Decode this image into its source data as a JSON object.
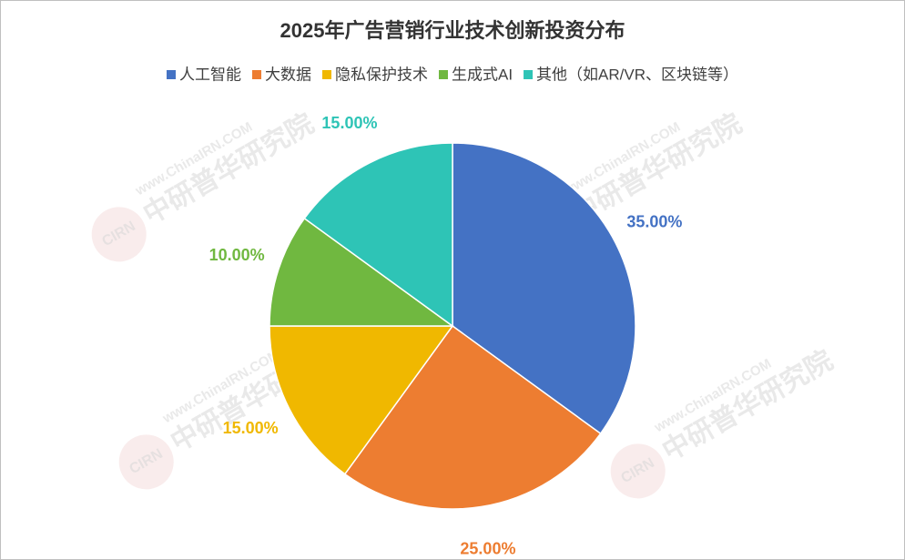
{
  "chart_data": {
    "type": "pie",
    "title": "2025年广告营销行业技术创新投资分布",
    "categories": [
      "人工智能",
      "大数据",
      "隐私保护技术",
      "生成式AI",
      "其他（如AR/VR、区块链等）"
    ],
    "values": [
      35,
      25,
      15,
      10,
      15
    ],
    "value_labels": [
      "35.00%",
      "25.00%",
      "15.00%",
      "10.00%",
      "15.00%"
    ],
    "colors": [
      "#4472c4",
      "#ed7d31",
      "#f0b800",
      "#70b840",
      "#2ec4b6"
    ],
    "legend": "top",
    "watermark": [
      "www.ChinaIRN.COM",
      "中研普华研究院",
      "CIRN"
    ]
  }
}
